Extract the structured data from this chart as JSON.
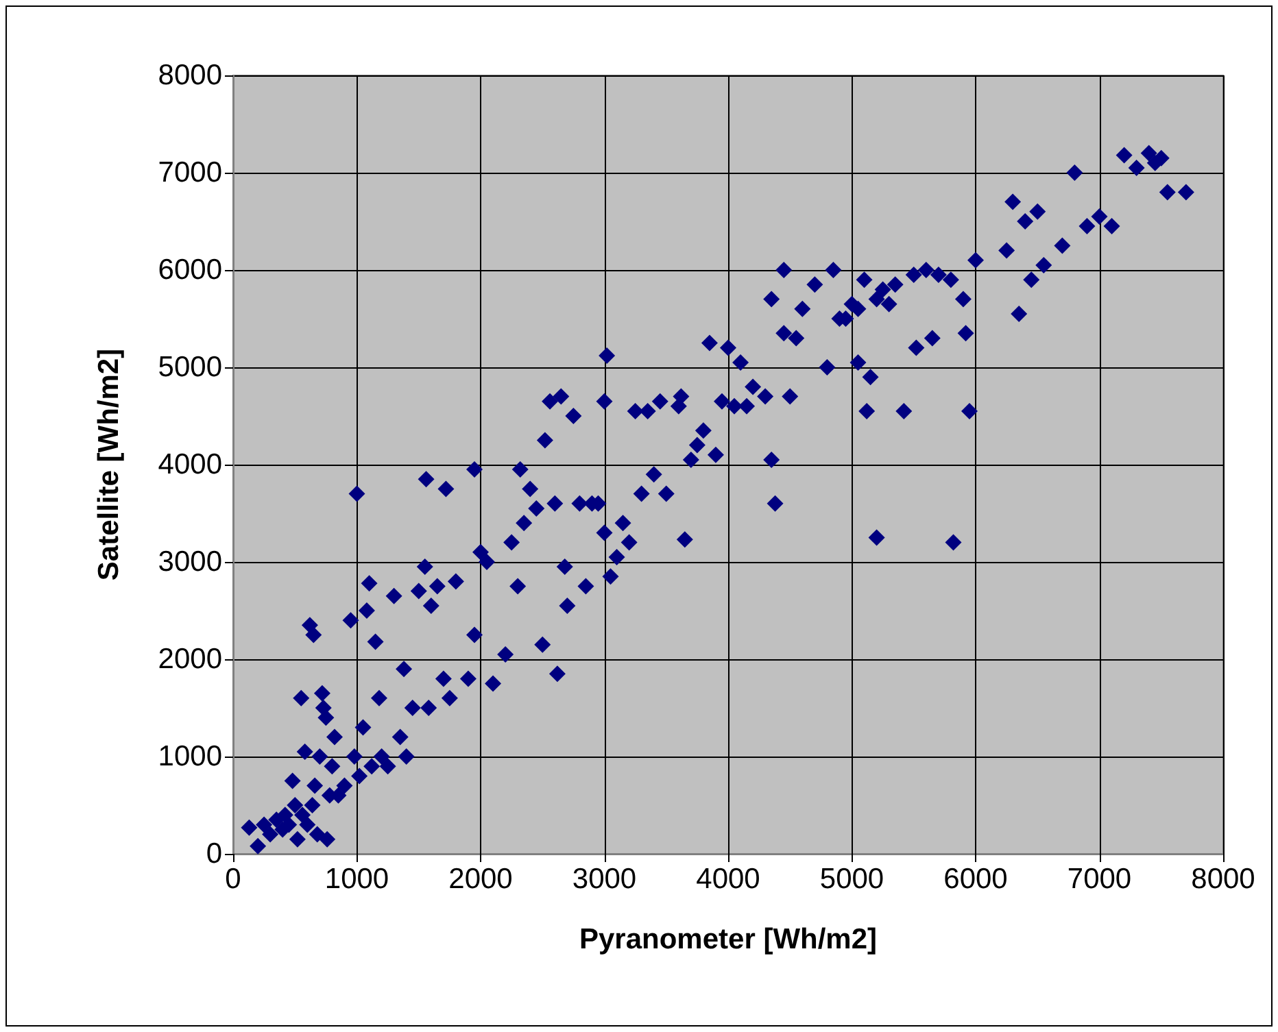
{
  "chart_data": {
    "type": "scatter",
    "xlabel": "Pyranometer [Wh/m2]",
    "ylabel": "Satellite [Wh/m2]",
    "xlim": [
      0,
      8000
    ],
    "ylim": [
      0,
      8000
    ],
    "xticks": [
      0,
      1000,
      2000,
      3000,
      4000,
      5000,
      6000,
      7000,
      8000
    ],
    "yticks": [
      0,
      1000,
      2000,
      3000,
      4000,
      5000,
      6000,
      7000,
      8000
    ],
    "grid": true,
    "marker": "diamond",
    "series": [
      {
        "color": "#000080",
        "x": [
          130,
          200,
          250,
          300,
          350,
          400,
          420,
          450,
          480,
          500,
          520,
          550,
          560,
          580,
          600,
          620,
          640,
          650,
          660,
          680,
          700,
          720,
          730,
          750,
          760,
          780,
          800,
          820,
          850,
          900,
          950,
          980,
          1000,
          1020,
          1050,
          1080,
          1100,
          1120,
          1150,
          1180,
          1200,
          1250,
          1300,
          1350,
          1380,
          1400,
          1450,
          1500,
          1550,
          1560,
          1600,
          1580,
          1650,
          1700,
          1720,
          1750,
          1800,
          1900,
          1950,
          1950,
          2000,
          2050,
          2100,
          2200,
          2250,
          2300,
          2320,
          2350,
          2400,
          2450,
          2500,
          2520,
          2560,
          2600,
          2620,
          2650,
          2680,
          2700,
          2750,
          2800,
          2850,
          2900,
          2950,
          3000,
          3020,
          3000,
          3050,
          3100,
          3150,
          3200,
          3250,
          3300,
          3350,
          3400,
          3450,
          3500,
          3600,
          3620,
          3650,
          3700,
          3750,
          3800,
          3850,
          3900,
          4000,
          4050,
          4100,
          4150,
          4200,
          4300,
          4350,
          4350,
          4380,
          4450,
          4450,
          4500,
          4550,
          4600,
          4700,
          4800,
          4850,
          4900,
          5000,
          5050,
          5100,
          5120,
          5150,
          5200,
          5250,
          5300,
          5350,
          5420,
          5500,
          5520,
          5600,
          5650,
          5700,
          5800,
          5820,
          5900,
          5920,
          5950,
          6000,
          6250,
          6300,
          6350,
          6400,
          6450,
          6500,
          6550,
          6700,
          6800,
          6900,
          7000,
          7100,
          7200,
          7300,
          7400,
          7450,
          7500,
          7550,
          7700,
          4950,
          5050,
          5200,
          3950
        ],
        "values": [
          270,
          80,
          300,
          200,
          350,
          250,
          400,
          300,
          750,
          500,
          150,
          1600,
          400,
          1050,
          300,
          2350,
          500,
          2250,
          700,
          200,
          1000,
          1650,
          1500,
          1400,
          150,
          600,
          900,
          1200,
          600,
          700,
          2400,
          1000,
          3700,
          800,
          1300,
          2500,
          2780,
          900,
          2180,
          1600,
          1000,
          900,
          2650,
          1200,
          1900,
          1000,
          1500,
          2700,
          2950,
          3850,
          2550,
          1500,
          2750,
          1800,
          3750,
          1600,
          2800,
          1800,
          3950,
          2250,
          3100,
          3000,
          1750,
          2050,
          3200,
          2750,
          3950,
          3400,
          3750,
          3550,
          2150,
          4250,
          4650,
          3600,
          1850,
          4700,
          2950,
          2550,
          4500,
          3600,
          2750,
          3600,
          3600,
          4650,
          5120,
          3300,
          2850,
          3050,
          3400,
          3200,
          4550,
          3700,
          4550,
          3900,
          4650,
          3700,
          4600,
          4700,
          3230,
          4050,
          4200,
          4350,
          5250,
          4100,
          5200,
          4600,
          5050,
          4600,
          4800,
          4700,
          5700,
          4050,
          3600,
          6000,
          5350,
          4700,
          5300,
          5600,
          5850,
          5000,
          6000,
          5500,
          5650,
          5050,
          5900,
          4550,
          4900,
          3250,
          5800,
          5650,
          5850,
          4550,
          5950,
          5200,
          6000,
          5300,
          5950,
          5900,
          3200,
          5700,
          5350,
          4550,
          6100,
          6200,
          6700,
          5550,
          6500,
          5900,
          6600,
          6050,
          6250,
          7000,
          6450,
          6550,
          6450,
          7180,
          7050,
          7200,
          7100,
          7150,
          6800,
          6800,
          5500,
          5600,
          5700,
          4650
        ]
      }
    ]
  }
}
